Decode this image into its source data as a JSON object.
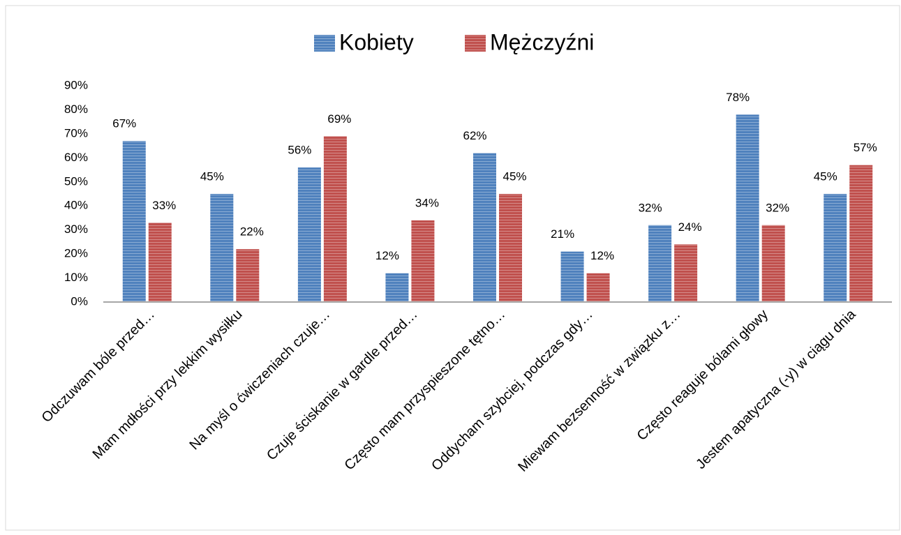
{
  "chart_data": {
    "type": "bar",
    "categories": [
      "Odczuwam bóle przed…",
      "Mam mdłości przy lekkim wysiłku",
      "Na myśl o ćwiczeniach czuje…",
      "Czuje ściskanie w gardle przed…",
      "Często mam przyspieszone tętno…",
      "Oddycham szybciej, podczas gdy…",
      "Miewam bezsenność w związku z…",
      "Często reaguje bólami głowy",
      "Jestem apatyczna (-y) w ciągu dnia"
    ],
    "series": [
      {
        "name": "Kobiety",
        "color": "#4f81bd",
        "values": [
          67,
          45,
          56,
          12,
          62,
          21,
          32,
          78,
          45
        ],
        "value_labels": [
          "67%",
          "45%",
          "56%",
          "12%",
          "62%",
          "21%",
          "32%",
          "78%",
          "45%"
        ]
      },
      {
        "name": "Mężczyźni",
        "color": "#c0504d",
        "values": [
          33,
          22,
          69,
          34,
          45,
          12,
          24,
          32,
          57
        ],
        "value_labels": [
          "33%",
          "22%",
          "69%",
          "34%",
          "45%",
          "12%",
          "24%",
          "32%",
          "57%"
        ]
      }
    ],
    "ylim": [
      0,
      90
    ],
    "yticks": [
      {
        "value": 0,
        "label": "0%"
      },
      {
        "value": 10,
        "label": "10%"
      },
      {
        "value": 20,
        "label": "20%"
      },
      {
        "value": 30,
        "label": "30%"
      },
      {
        "value": 40,
        "label": "40%"
      },
      {
        "value": 50,
        "label": "50%"
      },
      {
        "value": 60,
        "label": "60%"
      },
      {
        "value": 70,
        "label": "70%"
      },
      {
        "value": 80,
        "label": "80%"
      },
      {
        "value": 90,
        "label": "90%"
      }
    ],
    "grid": false,
    "legend": "top"
  }
}
